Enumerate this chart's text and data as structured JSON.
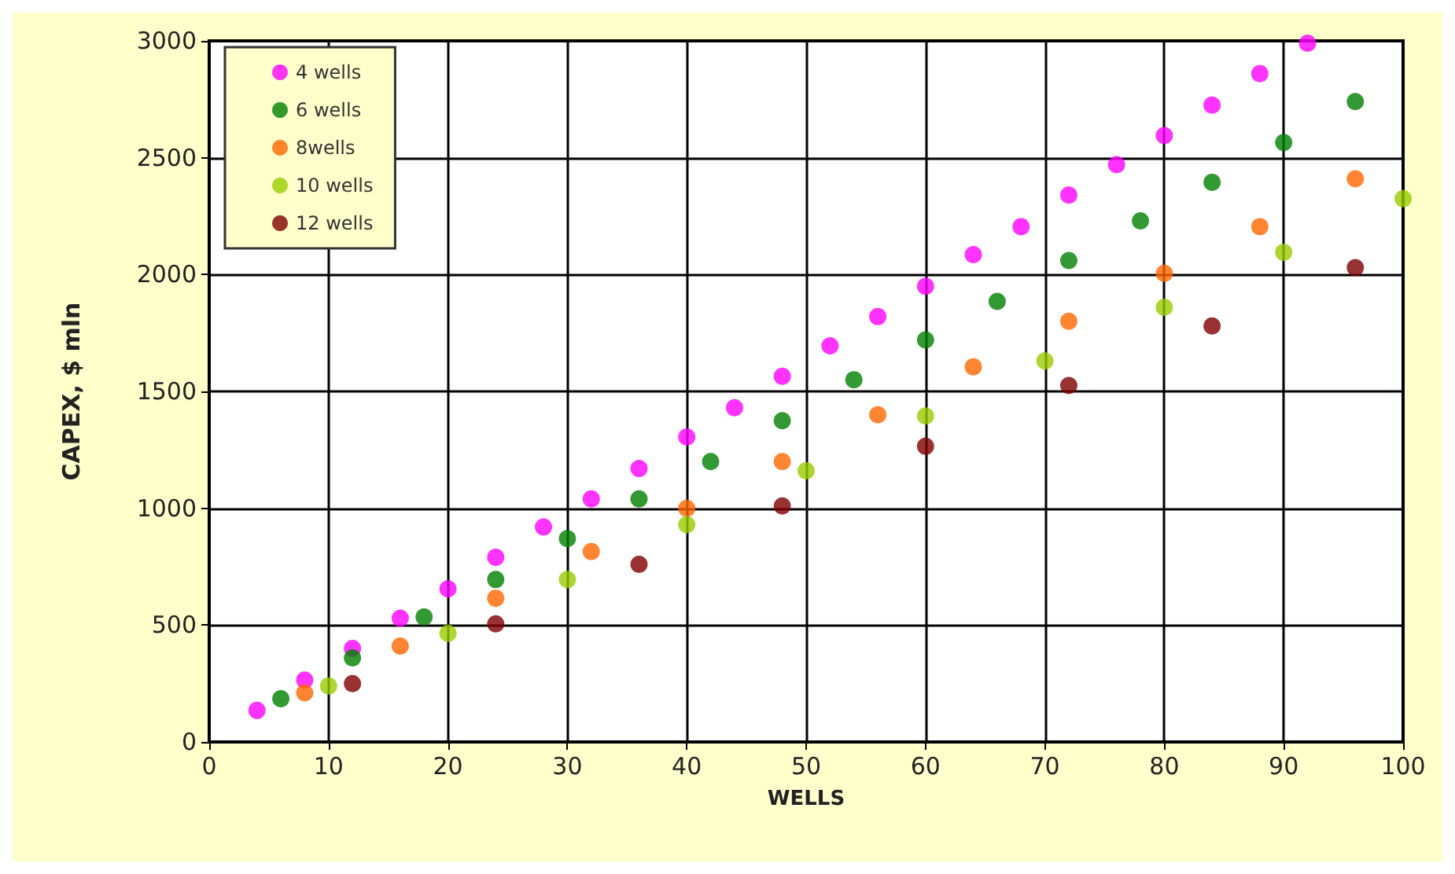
{
  "chart_data": {
    "type": "scatter",
    "xlabel": "WELLS",
    "ylabel": "CAPEX, $ mln",
    "xlim": [
      0,
      100
    ],
    "xticks": [
      0,
      10,
      20,
      30,
      40,
      50,
      60,
      70,
      80,
      90,
      100
    ],
    "ylim": [
      0,
      3000
    ],
    "yticks": [
      0,
      500,
      1000,
      1500,
      2000,
      2500,
      3000
    ],
    "grid": true,
    "legend": "top left",
    "marker": "circle",
    "series": [
      {
        "name": "4 wells",
        "color": "#ff00ff",
        "x": [
          4,
          8,
          12,
          16,
          20,
          24,
          28,
          32,
          36,
          40,
          44,
          48,
          52,
          56,
          60,
          64,
          68,
          72,
          76,
          80,
          84,
          88,
          92
        ],
        "values": [
          135,
          265,
          400,
          530,
          655,
          790,
          920,
          1040,
          1170,
          1305,
          1430,
          1565,
          1695,
          1820,
          1950,
          2085,
          2205,
          2340,
          2470,
          2595,
          2725,
          2860,
          2990
        ]
      },
      {
        "name": "6 wells",
        "color": "#008000",
        "x": [
          6,
          12,
          18,
          24,
          30,
          36,
          42,
          48,
          54,
          60,
          66,
          72,
          78,
          84,
          90,
          96
        ],
        "values": [
          185,
          360,
          535,
          695,
          870,
          1040,
          1200,
          1375,
          1550,
          1720,
          1885,
          2060,
          2230,
          2395,
          2565,
          2740
        ]
      },
      {
        "name": "8wells",
        "color": "#ff6600",
        "x": [
          8,
          16,
          24,
          32,
          40,
          48,
          56,
          64,
          72,
          80,
          88,
          96
        ],
        "values": [
          210,
          410,
          615,
          815,
          1000,
          1200,
          1400,
          1605,
          1800,
          2005,
          2205,
          2410
        ]
      },
      {
        "name": "10 wells",
        "color": "#99cc00",
        "x": [
          10,
          20,
          30,
          40,
          50,
          60,
          70,
          80,
          90,
          100
        ],
        "values": [
          240,
          465,
          695,
          930,
          1160,
          1395,
          1630,
          1860,
          2095,
          2325
        ]
      },
      {
        "name": "12 wells",
        "color": "#800000",
        "x": [
          12,
          24,
          36,
          48,
          60,
          72,
          84,
          96
        ],
        "values": [
          250,
          505,
          760,
          1010,
          1265,
          1525,
          1780,
          2030
        ]
      }
    ]
  }
}
